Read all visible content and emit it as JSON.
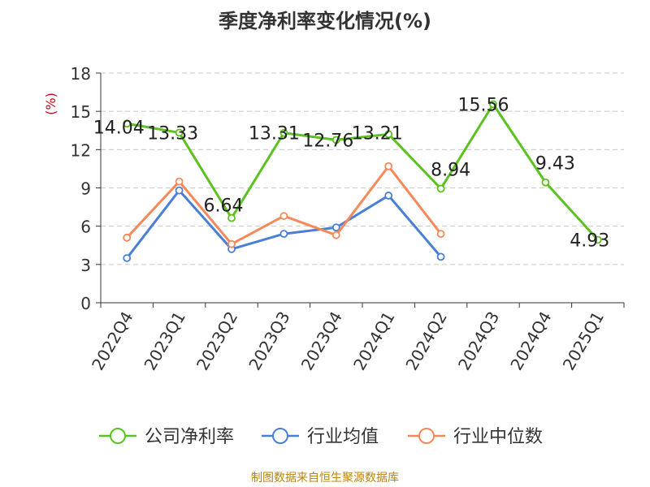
{
  "chart_data": {
    "type": "line",
    "title": "季度净利率变化情况(%)",
    "ylabel": "(%)",
    "ylim": [
      0,
      18
    ],
    "yticks": [
      0,
      3,
      6,
      9,
      12,
      15,
      18
    ],
    "categories": [
      "2022Q4",
      "2023Q1",
      "2023Q2",
      "2023Q3",
      "2023Q4",
      "2024Q1",
      "2024Q2",
      "2024Q3",
      "2024Q4",
      "2025Q1"
    ],
    "grid": true,
    "legend_position": "bottom",
    "series": [
      {
        "name": "公司净利率",
        "color": "#5bc21f",
        "values": [
          14.04,
          13.33,
          6.64,
          13.31,
          12.76,
          13.21,
          8.94,
          15.56,
          9.43,
          4.93
        ],
        "labels": [
          "14.04",
          "13.33",
          "6.64",
          "13.31",
          "12.76",
          "13.21",
          "8.94",
          "15.56",
          "9.43",
          "4.93"
        ]
      },
      {
        "name": "行业均值",
        "color": "#4a7fd6",
        "values": [
          3.5,
          8.8,
          4.2,
          5.4,
          5.9,
          8.4,
          3.6,
          null,
          null,
          null
        ]
      },
      {
        "name": "行业中位数",
        "color": "#f5895a",
        "values": [
          5.1,
          9.5,
          4.6,
          6.8,
          5.3,
          10.7,
          5.4,
          null,
          null,
          null
        ]
      }
    ]
  },
  "source": "制图数据来自恒生聚源数据库"
}
